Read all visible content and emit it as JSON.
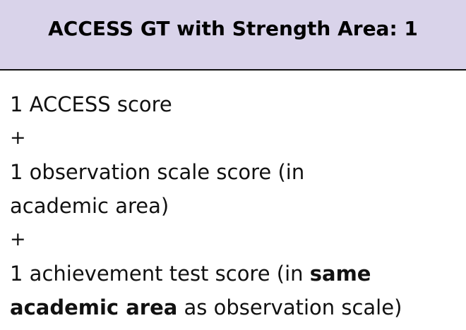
{
  "header": {
    "title": "ACCESS GT with Strength Area: 1"
  },
  "criteria": {
    "access_score": "1 ACCESS score",
    "plus_1": "+",
    "observation_line1": "1 observation scale score (in",
    "observation_line2": "academic area)",
    "plus_2": "+",
    "achievement_line1_prefix": "1 achievement test score (in ",
    "achievement_line1_bold": "same",
    "achievement_line2_bold": "academic area",
    "achievement_line2_suffix": " as observation scale)"
  },
  "colors": {
    "header_background": "#d9d3ea",
    "divider": "#111111",
    "text": "#111111"
  }
}
